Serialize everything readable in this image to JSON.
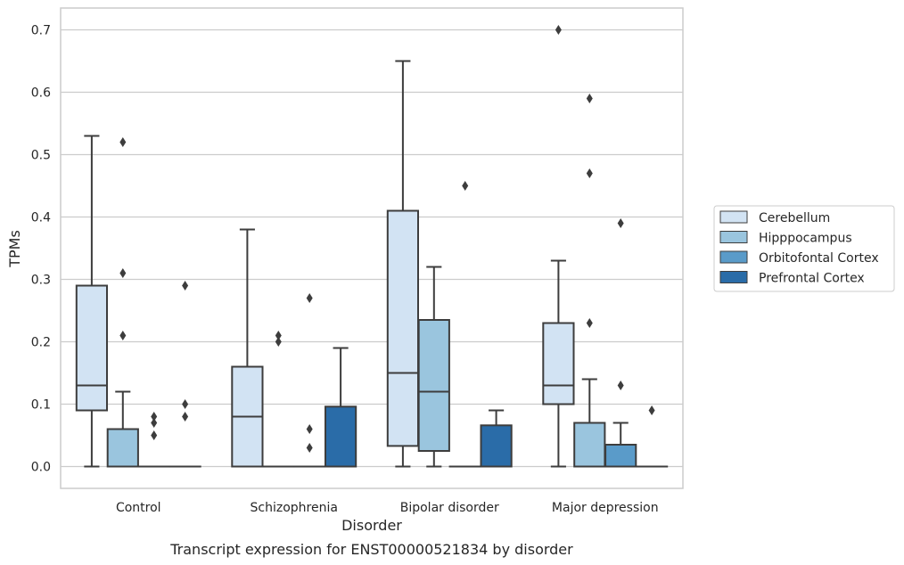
{
  "chart_data": {
    "type": "box",
    "title": "",
    "caption": "Transcript expression for ENST00000521834 by disorder",
    "xlabel": "Disorder",
    "ylabel": "TPMs",
    "ylim": [
      -0.035,
      0.735
    ],
    "yticks": [
      "0.0",
      "0.1",
      "0.2",
      "0.3",
      "0.4",
      "0.5",
      "0.6",
      "0.7"
    ],
    "grid": "horizontal",
    "legend_position": "right",
    "categories": [
      "Control",
      "Schizophrenia",
      "Bipolar disorder",
      "Major depression"
    ],
    "series": [
      {
        "name": "Cerebellum",
        "color": "#d2e3f3",
        "boxes": [
          {
            "q1": 0.09,
            "median": 0.13,
            "q3": 0.29,
            "whisker_low": 0.0,
            "whisker_high": 0.53,
            "outliers": []
          },
          {
            "q1": 0.0,
            "median": 0.08,
            "q3": 0.16,
            "whisker_low": 0.0,
            "whisker_high": 0.38,
            "outliers": []
          },
          {
            "q1": 0.033,
            "median": 0.15,
            "q3": 0.41,
            "whisker_low": 0.0,
            "whisker_high": 0.65,
            "outliers": []
          },
          {
            "q1": 0.1,
            "median": 0.13,
            "q3": 0.23,
            "whisker_low": 0.0,
            "whisker_high": 0.33,
            "outliers": [
              0.7
            ]
          }
        ]
      },
      {
        "name": "Hipppocampus",
        "color": "#9ac5de",
        "boxes": [
          {
            "q1": 0.0,
            "median": 0.0,
            "q3": 0.06,
            "whisker_low": 0.0,
            "whisker_high": 0.12,
            "outliers": [
              0.21,
              0.31,
              0.52
            ]
          },
          {
            "q1": 0.0,
            "median": 0.0,
            "q3": 0.0,
            "whisker_low": 0.0,
            "whisker_high": 0.0,
            "outliers": [
              0.2,
              0.21
            ]
          },
          {
            "q1": 0.025,
            "median": 0.12,
            "q3": 0.235,
            "whisker_low": 0.0,
            "whisker_high": 0.32,
            "outliers": []
          },
          {
            "q1": 0.0,
            "median": 0.0,
            "q3": 0.07,
            "whisker_low": 0.0,
            "whisker_high": 0.14,
            "outliers": [
              0.23,
              0.47,
              0.59
            ]
          }
        ]
      },
      {
        "name": "Orbitofontal Cortex",
        "color": "#5a9bc9",
        "boxes": [
          {
            "q1": 0.0,
            "median": 0.0,
            "q3": 0.0,
            "whisker_low": 0.0,
            "whisker_high": 0.0,
            "outliers": [
              0.05,
              0.07,
              0.08
            ]
          },
          {
            "q1": 0.0,
            "median": 0.0,
            "q3": 0.0,
            "whisker_low": 0.0,
            "whisker_high": 0.0,
            "outliers": [
              0.03,
              0.06,
              0.27
            ]
          },
          {
            "q1": 0.0,
            "median": 0.0,
            "q3": 0.0,
            "whisker_low": 0.0,
            "whisker_high": 0.0,
            "outliers": [
              0.45
            ]
          },
          {
            "q1": 0.0,
            "median": 0.0,
            "q3": 0.035,
            "whisker_low": 0.0,
            "whisker_high": 0.07,
            "outliers": [
              0.13,
              0.39
            ]
          }
        ]
      },
      {
        "name": "Prefrontal Cortex",
        "color": "#2a6ca8",
        "boxes": [
          {
            "q1": 0.0,
            "median": 0.0,
            "q3": 0.0,
            "whisker_low": 0.0,
            "whisker_high": 0.0,
            "outliers": [
              0.08,
              0.1,
              0.29
            ]
          },
          {
            "q1": 0.0,
            "median": 0.0,
            "q3": 0.096,
            "whisker_low": 0.0,
            "whisker_high": 0.19,
            "outliers": []
          },
          {
            "q1": 0.0,
            "median": 0.0,
            "q3": 0.066,
            "whisker_low": 0.0,
            "whisker_high": 0.09,
            "outliers": []
          },
          {
            "q1": 0.0,
            "median": 0.0,
            "q3": 0.0,
            "whisker_low": 0.0,
            "whisker_high": 0.0,
            "outliers": [
              0.09
            ]
          }
        ]
      }
    ]
  }
}
